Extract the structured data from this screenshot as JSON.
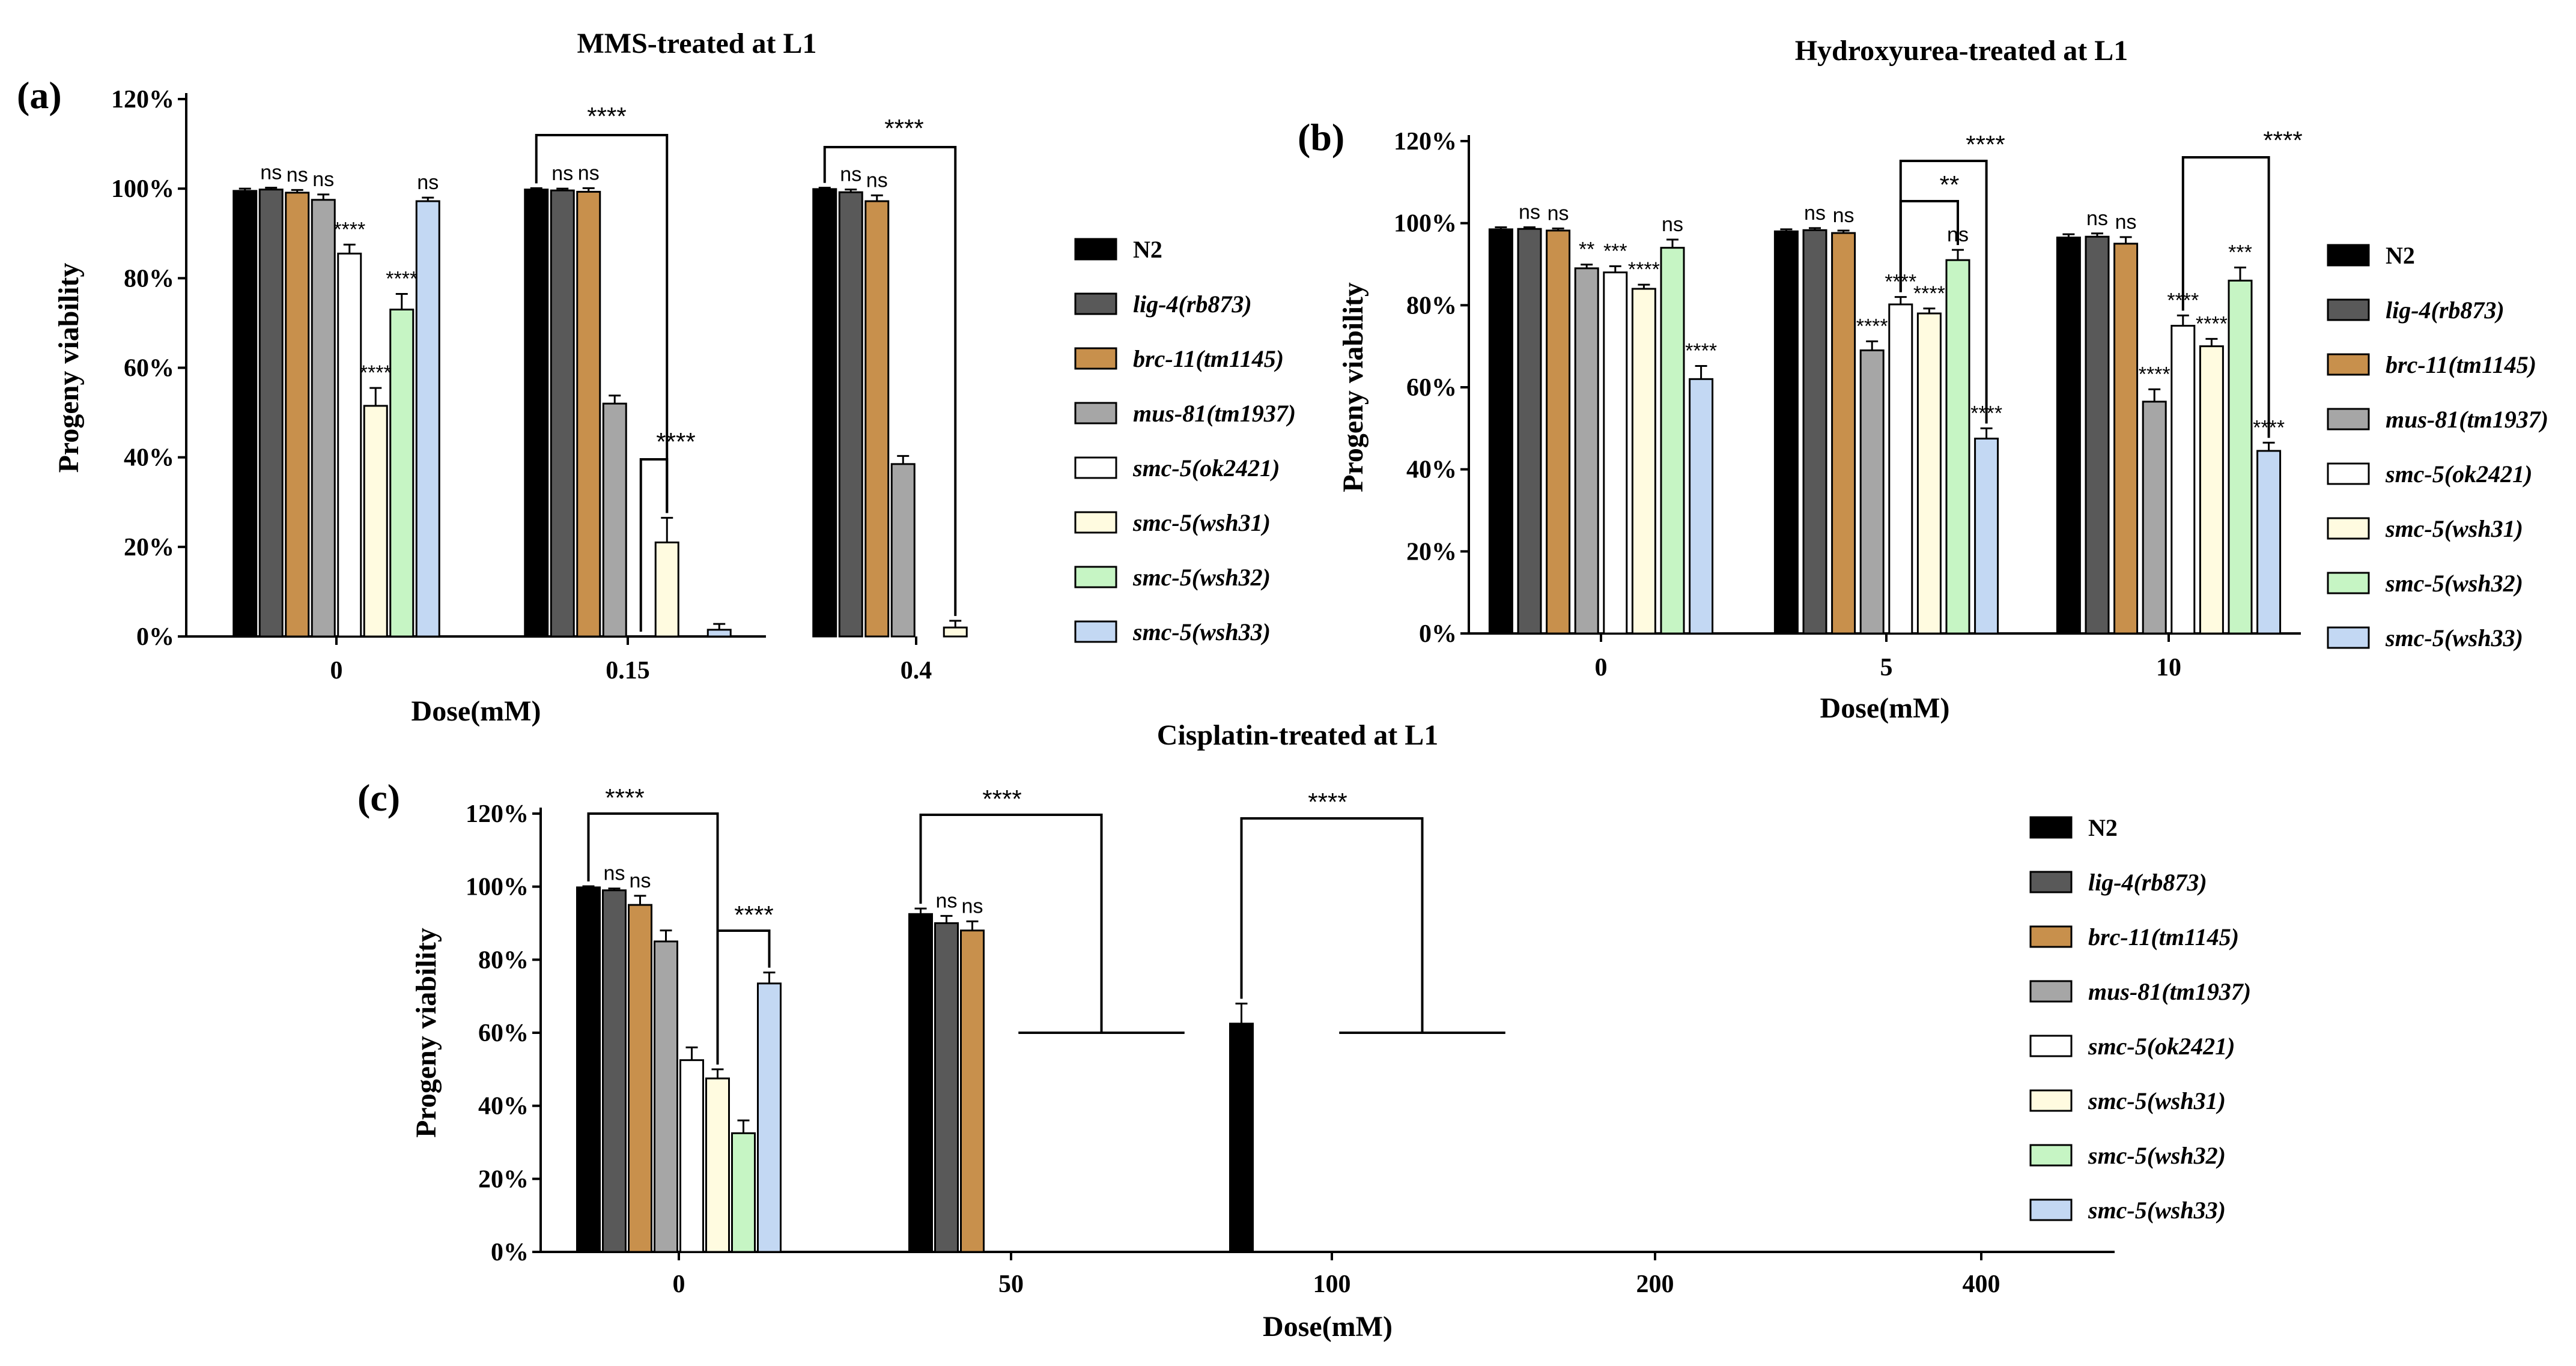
{
  "chart_data": [
    {
      "panel": "(a)",
      "type": "bar",
      "title": "MMS-treated at L1",
      "xlabel": "Dose(mM)",
      "ylabel": "Progeny viability",
      "ylim": [
        0,
        120
      ],
      "yticks": [
        "0%",
        "20%",
        "40%",
        "60%",
        "80%",
        "100%",
        "120%"
      ],
      "categories": [
        "0",
        "0.15",
        "0.4"
      ],
      "series": [
        {
          "name": "N2",
          "color": "#000000",
          "values": [
            99.5,
            99.8,
            99.9
          ],
          "errors": [
            0.5,
            0.3,
            0.3
          ]
        },
        {
          "name": "lig-4(rb873)",
          "color": "#595959",
          "values": [
            99.8,
            99.6,
            99.2
          ],
          "errors": [
            0.4,
            0.4,
            0.6
          ]
        },
        {
          "name": "brc-11(tm1145)",
          "color": "#c8904c",
          "values": [
            99.1,
            99.3,
            97.2
          ],
          "errors": [
            0.6,
            0.8,
            1.3
          ]
        },
        {
          "name": "mus-81(tm1937)",
          "color": "#a6a6a6",
          "values": [
            97.5,
            52.0,
            38.5
          ],
          "errors": [
            1.2,
            1.8,
            1.8
          ]
        },
        {
          "name": "smc-5(ok2421)",
          "color": "#ffffff",
          "values": [
            85.5,
            0,
            0
          ],
          "errors": [
            2.0,
            0,
            0
          ]
        },
        {
          "name": "smc-5(wsh31)",
          "color": "#fffbe0",
          "values": [
            51.5,
            21.0,
            2.0
          ],
          "errors": [
            4.0,
            5.5,
            1.5
          ]
        },
        {
          "name": "smc-5(wsh32)",
          "color": "#c6f5c4",
          "values": [
            73.0,
            0,
            0
          ],
          "errors": [
            3.5,
            0,
            0
          ]
        },
        {
          "name": "smc-5(wsh33)",
          "color": "#c3d8f3",
          "values": [
            97.2,
            1.5,
            0
          ],
          "errors": [
            0.8,
            1.3,
            0
          ]
        }
      ],
      "annotations": [
        {
          "text": "ns",
          "group": 0,
          "bar": 1
        },
        {
          "text": "ns",
          "group": 0,
          "bar": 2
        },
        {
          "text": "ns",
          "group": 0,
          "bar": 3
        },
        {
          "text": "****",
          "group": 0,
          "bar": 4
        },
        {
          "text": "****",
          "group": 0,
          "bar": 5
        },
        {
          "text": "****",
          "group": 0,
          "bar": 6
        },
        {
          "text": "ns",
          "group": 0,
          "bar": 7
        },
        {
          "text": "ns",
          "group": 1,
          "bar": 1
        },
        {
          "text": "ns",
          "group": 1,
          "bar": 2
        },
        {
          "text": "ns",
          "group": 2,
          "bar": 1
        },
        {
          "text": "ns",
          "group": 2,
          "bar": 2
        }
      ],
      "brackets": [
        {
          "text": "****",
          "from_group": 1,
          "from_bar": 0,
          "to_group": 1,
          "to_bar": 5
        },
        {
          "text": "****",
          "from_group": 1,
          "from_bar": 4,
          "to_group": 1,
          "to_bar": 5
        },
        {
          "text": "****",
          "from_group": 2,
          "from_bar": 0,
          "to_group": 2,
          "to_bar": 5
        }
      ]
    },
    {
      "panel": "(b)",
      "type": "bar",
      "title": "Hydroxyurea-treated at L1",
      "xlabel": "Dose(mM)",
      "ylabel": "Progeny viability",
      "ylim": [
        0,
        120
      ],
      "yticks": [
        "0%",
        "20%",
        "40%",
        "60%",
        "80%",
        "100%",
        "120%"
      ],
      "categories": [
        "0",
        "5",
        "10"
      ],
      "series": [
        {
          "name": "N2",
          "color": "#000000",
          "values": [
            98.5,
            98.0,
            96.5
          ],
          "errors": [
            0.5,
            0.5,
            0.8
          ]
        },
        {
          "name": "lig-4(rb873)",
          "color": "#595959",
          "values": [
            98.6,
            98.3,
            96.7
          ],
          "errors": [
            0.4,
            0.5,
            0.8
          ]
        },
        {
          "name": "brc-11(tm1145)",
          "color": "#c8904c",
          "values": [
            98.2,
            97.6,
            95.0
          ],
          "errors": [
            0.5,
            0.6,
            1.6
          ]
        },
        {
          "name": "mus-81(tm1937)",
          "color": "#a6a6a6",
          "values": [
            89.0,
            69.0,
            56.5
          ],
          "errors": [
            0.9,
            2.2,
            3.0
          ]
        },
        {
          "name": "smc-5(ok2421)",
          "color": "#ffffff",
          "values": [
            88.0,
            80.2,
            75.0
          ],
          "errors": [
            1.5,
            1.8,
            2.5
          ]
        },
        {
          "name": "smc-5(wsh31)",
          "color": "#fffbe0",
          "values": [
            84.0,
            78.0,
            70.0
          ],
          "errors": [
            1.0,
            1.2,
            1.8
          ]
        },
        {
          "name": "smc-5(wsh32)",
          "color": "#c6f5c4",
          "values": [
            94.0,
            91.0,
            86.0
          ],
          "errors": [
            2.0,
            2.5,
            3.2
          ]
        },
        {
          "name": "smc-5(wsh33)",
          "color": "#c3d8f3",
          "values": [
            62.0,
            47.5,
            44.5
          ],
          "errors": [
            3.2,
            2.5,
            2.0
          ]
        }
      ],
      "annotations": [
        {
          "text": "ns",
          "group": 0,
          "bar": 1
        },
        {
          "text": "ns",
          "group": 0,
          "bar": 2
        },
        {
          "text": "**",
          "group": 0,
          "bar": 3
        },
        {
          "text": "***",
          "group": 0,
          "bar": 4
        },
        {
          "text": "****",
          "group": 0,
          "bar": 5
        },
        {
          "text": "ns",
          "group": 0,
          "bar": 6
        },
        {
          "text": "****",
          "group": 0,
          "bar": 7
        },
        {
          "text": "ns",
          "group": 1,
          "bar": 1
        },
        {
          "text": "ns",
          "group": 1,
          "bar": 2
        },
        {
          "text": "****",
          "group": 1,
          "bar": 3
        },
        {
          "text": "****",
          "group": 1,
          "bar": 4
        },
        {
          "text": "****",
          "group": 1,
          "bar": 5
        },
        {
          "text": "ns",
          "group": 1,
          "bar": 6
        },
        {
          "text": "****",
          "group": 1,
          "bar": 7
        },
        {
          "text": "ns",
          "group": 2,
          "bar": 1
        },
        {
          "text": "ns",
          "group": 2,
          "bar": 2
        },
        {
          "text": "****",
          "group": 2,
          "bar": 3
        },
        {
          "text": "****",
          "group": 2,
          "bar": 4
        },
        {
          "text": "****",
          "group": 2,
          "bar": 5
        },
        {
          "text": "***",
          "group": 2,
          "bar": 6
        },
        {
          "text": "****",
          "group": 2,
          "bar": 7
        }
      ],
      "brackets": [
        {
          "text": "****",
          "from_group": 1,
          "from_bar": 4,
          "to_group": 1,
          "to_bar": 7
        },
        {
          "text": "**",
          "from_group": 1,
          "from_bar": 4,
          "to_group": 1,
          "to_bar": 6
        },
        {
          "text": "****",
          "from_group": 2,
          "from_bar": 4,
          "to_group": 2,
          "to_bar": 7
        }
      ]
    },
    {
      "panel": "(c)",
      "type": "bar",
      "title": "Cisplatin-treated at L1",
      "xlabel": "Dose(mM)",
      "ylabel": "Progeny viability",
      "ylim": [
        0,
        120
      ],
      "yticks": [
        "0%",
        "20%",
        "40%",
        "60%",
        "80%",
        "100%",
        "120%"
      ],
      "categories": [
        "0",
        "50",
        "100",
        "200",
        "400"
      ],
      "series": [
        {
          "name": "N2",
          "color": "#000000",
          "values": [
            99.8,
            92.5,
            62.5,
            0,
            0
          ],
          "errors": [
            0.3,
            1.5,
            5.5,
            0,
            0
          ]
        },
        {
          "name": "lig-4(rb873)",
          "color": "#595959",
          "values": [
            99.0,
            90.0,
            0,
            0,
            0
          ],
          "errors": [
            0.5,
            2.0,
            0,
            0,
            0
          ]
        },
        {
          "name": "brc-11(tm1145)",
          "color": "#c8904c",
          "values": [
            95.0,
            88.0,
            0,
            0,
            0
          ],
          "errors": [
            2.5,
            2.5,
            0,
            0,
            0
          ]
        },
        {
          "name": "mus-81(tm1937)",
          "color": "#a6a6a6",
          "values": [
            85.0,
            0,
            0,
            0,
            0
          ],
          "errors": [
            3.0,
            0,
            0,
            0,
            0
          ]
        },
        {
          "name": "smc-5(ok2421)",
          "color": "#ffffff",
          "values": [
            52.5,
            0,
            0,
            0,
            0
          ],
          "errors": [
            3.5,
            0,
            0,
            0,
            0
          ]
        },
        {
          "name": "smc-5(wsh31)",
          "color": "#fffbe0",
          "values": [
            47.5,
            0,
            0,
            0,
            0
          ],
          "errors": [
            2.5,
            0,
            0,
            0,
            0
          ]
        },
        {
          "name": "smc-5(wsh32)",
          "color": "#c6f5c4",
          "values": [
            32.5,
            0,
            0,
            0,
            0
          ],
          "errors": [
            3.5,
            0,
            0,
            0,
            0
          ]
        },
        {
          "name": "smc-5(wsh33)",
          "color": "#c3d8f3",
          "values": [
            73.5,
            0,
            0,
            0,
            0
          ],
          "errors": [
            3.0,
            0,
            0,
            0,
            0
          ]
        }
      ],
      "annotations": [
        {
          "text": "ns",
          "group": 0,
          "bar": 1
        },
        {
          "text": "ns",
          "group": 0,
          "bar": 2
        },
        {
          "text": "ns",
          "group": 1,
          "bar": 1
        },
        {
          "text": "ns",
          "group": 1,
          "bar": 2
        }
      ],
      "brackets": [
        {
          "text": "****",
          "from_group": 0,
          "from_bar": 0,
          "to_group": 0,
          "to_bar": 5
        },
        {
          "text": "****",
          "from_group": 0,
          "from_bar": 5,
          "to_group": 0,
          "to_bar": 7
        },
        {
          "text": "****",
          "from_group": 1,
          "from_bar": 0,
          "to_group": 1,
          "to_bar": 7
        },
        {
          "text": "****",
          "from_group": 2,
          "from_bar": 0,
          "to_group": 2,
          "to_bar": 7
        }
      ]
    }
  ]
}
